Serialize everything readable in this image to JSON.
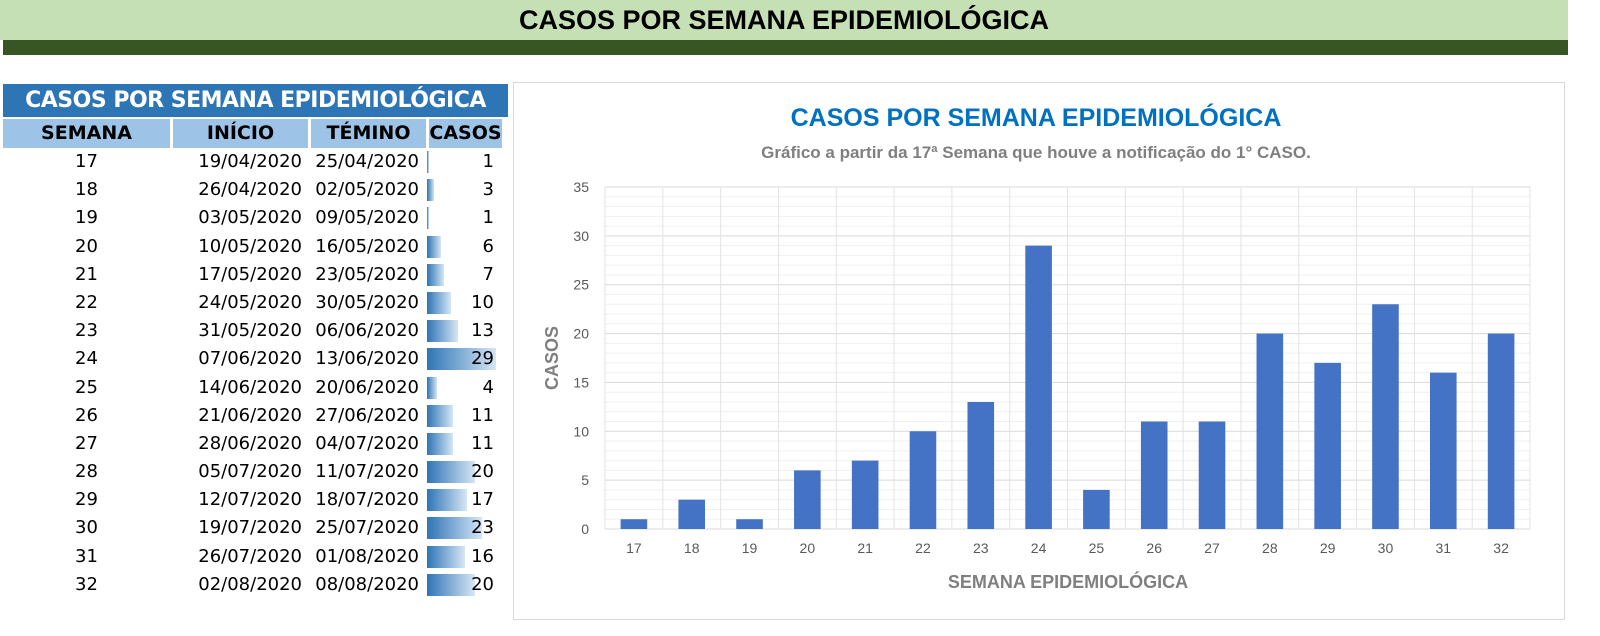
{
  "banner": {
    "title": "CASOS POR SEMANA EPIDEMIOLÓGICA"
  },
  "table": {
    "title": "CASOS POR SEMANA EPIDEMIOLÓGICA",
    "headers": [
      "SEMANA",
      "INÍCIO",
      "TÉMINO",
      "CASOS"
    ],
    "rows": [
      [
        "17",
        "19/04/2020",
        "25/04/2020",
        "1"
      ],
      [
        "18",
        "26/04/2020",
        "02/05/2020",
        "3"
      ],
      [
        "19",
        "03/05/2020",
        "09/05/2020",
        "1"
      ],
      [
        "20",
        "10/05/2020",
        "16/05/2020",
        "6"
      ],
      [
        "21",
        "17/05/2020",
        "23/05/2020",
        "7"
      ],
      [
        "22",
        "24/05/2020",
        "30/05/2020",
        "10"
      ],
      [
        "23",
        "31/05/2020",
        "06/06/2020",
        "13"
      ],
      [
        "24",
        "07/06/2020",
        "13/06/2020",
        "29"
      ],
      [
        "25",
        "14/06/2020",
        "20/06/2020",
        "4"
      ],
      [
        "26",
        "21/06/2020",
        "27/06/2020",
        "11"
      ],
      [
        "27",
        "28/06/2020",
        "04/07/2020",
        "11"
      ],
      [
        "28",
        "05/07/2020",
        "11/07/2020",
        "20"
      ],
      [
        "29",
        "12/07/2020",
        "18/07/2020",
        "17"
      ],
      [
        "30",
        "19/07/2020",
        "25/07/2020",
        "23"
      ],
      [
        "31",
        "26/07/2020",
        "01/08/2020",
        "16"
      ],
      [
        "32",
        "02/08/2020",
        "08/08/2020",
        "20"
      ]
    ]
  },
  "chart_data": {
    "type": "bar",
    "title": "CASOS POR SEMANA EPIDEMIOLÓGICA",
    "subtitle": "Gráfico a partir da 17ª Semana que houve a notificação do 1° CASO.",
    "xlabel": "SEMANA EPIDEMIOLÓGICA",
    "ylabel": "CASOS",
    "ylim": [
      0,
      35
    ],
    "yticks": [
      0,
      5,
      10,
      15,
      20,
      25,
      30,
      35
    ],
    "categories": [
      "17",
      "18",
      "19",
      "20",
      "21",
      "22",
      "23",
      "24",
      "25",
      "26",
      "27",
      "28",
      "29",
      "30",
      "31",
      "32"
    ],
    "values": [
      1,
      3,
      1,
      6,
      7,
      10,
      13,
      29,
      4,
      11,
      11,
      20,
      17,
      23,
      16,
      20
    ],
    "bar_color": "#4472c4",
    "title_color": "#0070c0",
    "grid": true
  }
}
